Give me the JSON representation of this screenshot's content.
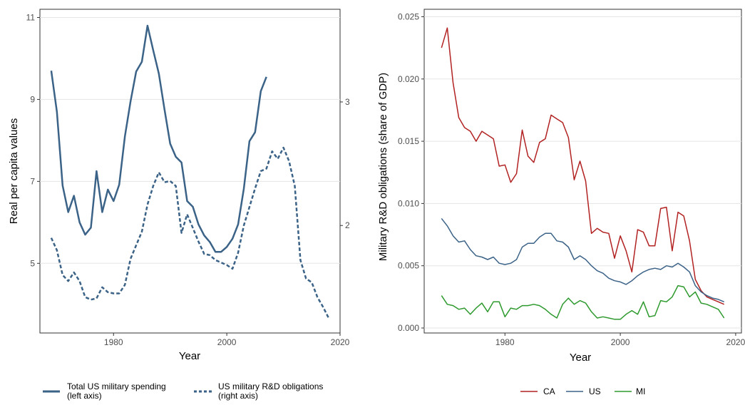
{
  "chart_data": [
    {
      "type": "line",
      "xlabel": "Year",
      "ylabel": "Real per capita values",
      "xlim": [
        1967,
        2020
      ],
      "x_ticks": [
        "1980",
        "2000",
        "2020"
      ],
      "ylim_left": [
        3.3,
        11.2
      ],
      "y_ticks_left": [
        "5",
        "7",
        "9",
        "11"
      ],
      "ylim_right": [
        1.13,
        3.75
      ],
      "y_ticks_right": [
        "2",
        "3"
      ],
      "grid": "horizontal",
      "legend_position": "bottom",
      "series": [
        {
          "name": "Total US military spending\n(left axis)",
          "axis": "left",
          "style": "solid",
          "color": "#3b6287",
          "x": [
            1969,
            1970,
            1971,
            1972,
            1973,
            1974,
            1975,
            1976,
            1977,
            1978,
            1979,
            1980,
            1981,
            1982,
            1983,
            1984,
            1985,
            1986,
            1987,
            1988,
            1989,
            1990,
            1991,
            1992,
            1993,
            1994,
            1995,
            1996,
            1997,
            1998,
            1999,
            2000,
            2001,
            2002,
            2003,
            2004,
            2005,
            2006,
            2007
          ],
          "values": [
            9.7,
            8.7,
            6.9,
            6.25,
            6.65,
            6.0,
            5.7,
            5.87,
            7.25,
            6.25,
            6.8,
            6.52,
            6.92,
            8.1,
            8.95,
            9.68,
            9.92,
            10.8,
            10.2,
            9.63,
            8.75,
            7.92,
            7.6,
            7.46,
            6.52,
            6.38,
            5.95,
            5.68,
            5.52,
            5.28,
            5.28,
            5.4,
            5.6,
            5.95,
            6.82,
            7.98,
            8.2,
            9.2,
            9.55
          ]
        },
        {
          "name": "US military R&D obligations\n(right axis)",
          "axis": "right",
          "style": "dashed",
          "color": "#3b6287",
          "x": [
            1969,
            1970,
            1971,
            1972,
            1973,
            1974,
            1975,
            1976,
            1977,
            1978,
            1979,
            1980,
            1981,
            1982,
            1983,
            1984,
            1985,
            1986,
            1987,
            1988,
            1989,
            1990,
            1991,
            1992,
            1993,
            1994,
            1995,
            1996,
            1997,
            1998,
            1999,
            2000,
            2001,
            2002,
            2003,
            2004,
            2005,
            2006,
            2007,
            2008,
            2009,
            2010,
            2011,
            2012,
            2013,
            2014,
            2015,
            2016,
            2017,
            2018
          ],
          "values": [
            1.9,
            1.8,
            1.6,
            1.55,
            1.62,
            1.55,
            1.42,
            1.4,
            1.41,
            1.5,
            1.46,
            1.45,
            1.45,
            1.52,
            1.73,
            1.84,
            1.95,
            2.17,
            2.32,
            2.43,
            2.35,
            2.36,
            2.32,
            1.94,
            2.09,
            1.98,
            1.87,
            1.77,
            1.76,
            1.72,
            1.7,
            1.68,
            1.65,
            1.78,
            2.0,
            2.15,
            2.3,
            2.44,
            2.46,
            2.6,
            2.54,
            2.63,
            2.52,
            2.32,
            1.72,
            1.57,
            1.54,
            1.42,
            1.34,
            1.25
          ]
        }
      ]
    },
    {
      "type": "line",
      "xlabel": "Year",
      "ylabel": "Military R&D obligations (share of GDP)",
      "xlim": [
        1966,
        2021
      ],
      "x_ticks": [
        "1980",
        "2000",
        "2020"
      ],
      "ylim": [
        -0.0004,
        0.0256
      ],
      "y_ticks": [
        "0.000",
        "0.005",
        "0.010",
        "0.015",
        "0.020",
        "0.025"
      ],
      "grid": "horizontal",
      "legend_position": "bottom",
      "series": [
        {
          "name": "CA",
          "color": "#b22222",
          "x": [
            1969,
            1970,
            1971,
            1972,
            1973,
            1974,
            1975,
            1976,
            1977,
            1978,
            1979,
            1980,
            1981,
            1982,
            1983,
            1984,
            1985,
            1986,
            1987,
            1988,
            1989,
            1990,
            1991,
            1992,
            1993,
            1994,
            1995,
            1996,
            1997,
            1998,
            1999,
            2000,
            2001,
            2002,
            2003,
            2004,
            2005,
            2006,
            2007,
            2008,
            2009,
            2010,
            2011,
            2012,
            2013,
            2014,
            2015,
            2016,
            2017,
            2018
          ],
          "values": [
            0.0225,
            0.0241,
            0.0197,
            0.0169,
            0.0161,
            0.0158,
            0.015,
            0.0158,
            0.0155,
            0.0152,
            0.013,
            0.0131,
            0.0117,
            0.0124,
            0.0159,
            0.0138,
            0.0133,
            0.0149,
            0.0152,
            0.0171,
            0.0168,
            0.0165,
            0.0153,
            0.0119,
            0.0134,
            0.0118,
            0.0076,
            0.008,
            0.0077,
            0.0076,
            0.0056,
            0.0074,
            0.0062,
            0.0045,
            0.0079,
            0.0077,
            0.0066,
            0.0066,
            0.0096,
            0.0097,
            0.0062,
            0.0093,
            0.009,
            0.007,
            0.0039,
            0.003,
            0.0025,
            0.0023,
            0.0021,
            0.0019
          ]
        },
        {
          "name": "US",
          "color": "#3b6287",
          "x": [
            1969,
            1970,
            1971,
            1972,
            1973,
            1974,
            1975,
            1976,
            1977,
            1978,
            1979,
            1980,
            1981,
            1982,
            1983,
            1984,
            1985,
            1986,
            1987,
            1988,
            1989,
            1990,
            1991,
            1992,
            1993,
            1994,
            1995,
            1996,
            1997,
            1998,
            1999,
            2000,
            2001,
            2002,
            2003,
            2004,
            2005,
            2006,
            2007,
            2008,
            2009,
            2010,
            2011,
            2012,
            2013,
            2014,
            2015,
            2016,
            2017,
            2018
          ],
          "values": [
            0.0088,
            0.0082,
            0.0074,
            0.0069,
            0.007,
            0.0063,
            0.0058,
            0.0057,
            0.0055,
            0.0057,
            0.0052,
            0.0051,
            0.0052,
            0.0055,
            0.0065,
            0.0068,
            0.0068,
            0.0073,
            0.0076,
            0.0076,
            0.007,
            0.0069,
            0.0065,
            0.0055,
            0.0058,
            0.0055,
            0.005,
            0.0046,
            0.0044,
            0.004,
            0.0038,
            0.0037,
            0.0035,
            0.0038,
            0.0042,
            0.0045,
            0.0047,
            0.0048,
            0.0047,
            0.005,
            0.0049,
            0.0052,
            0.0049,
            0.0045,
            0.0034,
            0.0029,
            0.0026,
            0.0024,
            0.0023,
            0.0021
          ]
        },
        {
          "name": "MI",
          "color": "#2e9a2e",
          "x": [
            1969,
            1970,
            1971,
            1972,
            1973,
            1974,
            1975,
            1976,
            1977,
            1978,
            1979,
            1980,
            1981,
            1982,
            1983,
            1984,
            1985,
            1986,
            1987,
            1988,
            1989,
            1990,
            1991,
            1992,
            1993,
            1994,
            1995,
            1996,
            1997,
            1998,
            1999,
            2000,
            2001,
            2002,
            2003,
            2004,
            2005,
            2006,
            2007,
            2008,
            2009,
            2010,
            2011,
            2012,
            2013,
            2014,
            2015,
            2016,
            2017,
            2018
          ],
          "values": [
            0.0026,
            0.0019,
            0.0018,
            0.0015,
            0.0016,
            0.0011,
            0.0016,
            0.002,
            0.0013,
            0.0021,
            0.0021,
            0.0009,
            0.0016,
            0.0015,
            0.0018,
            0.0018,
            0.0019,
            0.0018,
            0.0015,
            0.0011,
            0.0008,
            0.0019,
            0.0024,
            0.0019,
            0.0022,
            0.002,
            0.0013,
            0.0008,
            0.0009,
            0.0008,
            0.0007,
            0.0007,
            0.0011,
            0.0014,
            0.0011,
            0.0021,
            0.0009,
            0.001,
            0.0022,
            0.0021,
            0.0025,
            0.0034,
            0.0033,
            0.0025,
            0.0029,
            0.002,
            0.0019,
            0.0017,
            0.0015,
            0.0008
          ]
        }
      ]
    }
  ]
}
